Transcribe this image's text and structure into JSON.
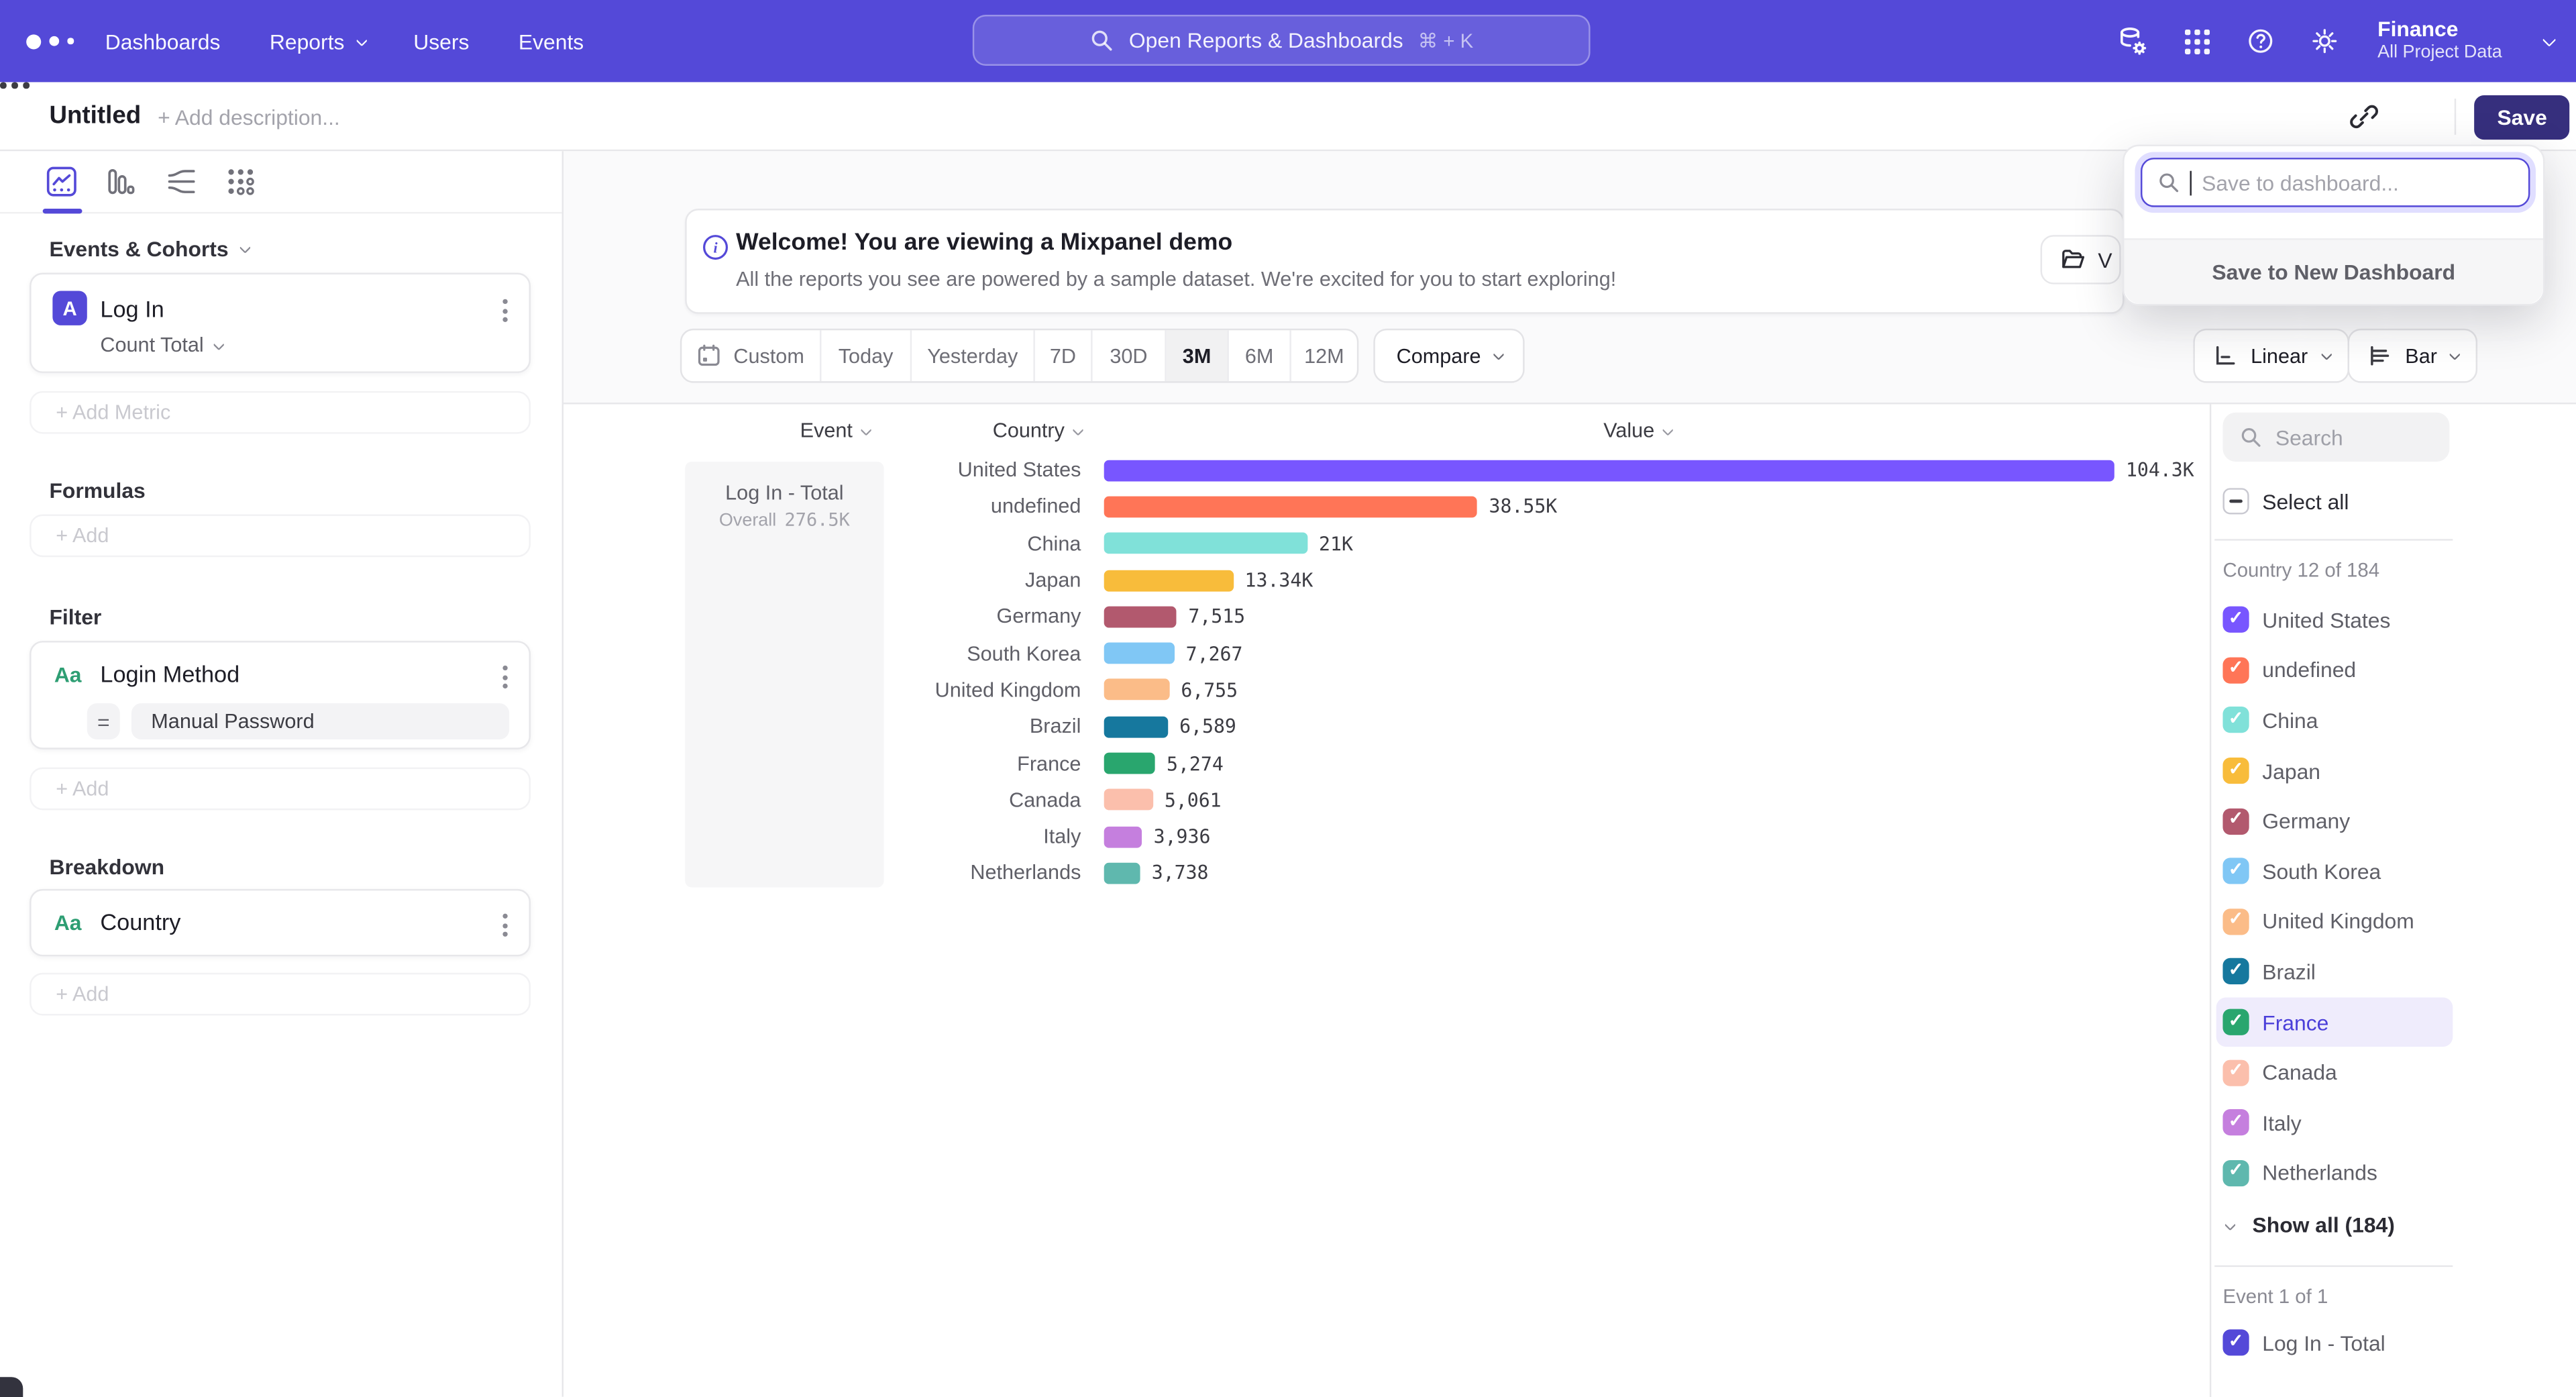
{
  "nav": {
    "menu": [
      "Dashboards",
      "Reports",
      "Users",
      "Events"
    ],
    "search_placeholder": "Open Reports & Dashboards",
    "search_shortcut": "⌘ + K",
    "project_name": "Finance",
    "project_scope": "All Project Data"
  },
  "header": {
    "title": "Untitled",
    "description_placeholder": "+ Add description...",
    "save_label": "Save"
  },
  "save_popup": {
    "input_placeholder": "Save to dashboard...",
    "new_dashboard_label": "Save to New Dashboard"
  },
  "banner": {
    "title": "Welcome! You are viewing a Mixpanel demo",
    "subtitle": "All the reports you see are powered by a sample dataset. We're excited for you to start exploring!",
    "button_label": "V"
  },
  "toolbar": {
    "ranges": [
      "Custom",
      "Today",
      "Yesterday",
      "7D",
      "30D",
      "3M",
      "6M",
      "12M"
    ],
    "selected_range": "3M",
    "compare_label": "Compare",
    "scale_type": "Linear",
    "chart_type": "Bar"
  },
  "sidebar": {
    "events_header": "Events & Cohorts",
    "event_badge": "A",
    "event_name": "Log In",
    "event_aggregation": "Count Total",
    "add_metric_label": "+ Add Metric",
    "formulas_header": "Formulas",
    "formulas_add_label": "+ Add",
    "filter_header": "Filter",
    "filter_property_icon": "Aa",
    "filter_property": "Login Method",
    "filter_operator": "=",
    "filter_value": "Manual Password",
    "filter_add_label": "+ Add",
    "breakdown_header": "Breakdown",
    "breakdown_property_icon": "Aa",
    "breakdown_property": "Country",
    "breakdown_add_label": "+ Add"
  },
  "chart_data": {
    "type": "bar",
    "orientation": "horizontal",
    "series_name": "Log In - Total",
    "overall_label": "Overall",
    "overall_value": "276.5K",
    "column_headers": {
      "event": "Event",
      "country": "Country",
      "value": "Value"
    },
    "categories": [
      "United States",
      "undefined",
      "China",
      "Japan",
      "Germany",
      "South Korea",
      "United Kingdom",
      "Brazil",
      "France",
      "Canada",
      "Italy",
      "Netherlands"
    ],
    "values": [
      104300,
      38550,
      21000,
      13340,
      7515,
      7267,
      6755,
      6589,
      5274,
      5061,
      3936,
      3738
    ],
    "value_labels": [
      "104.3K",
      "38.55K",
      "21K",
      "13.34K",
      "7,515",
      "7,267",
      "6,755",
      "6,589",
      "5,274",
      "5,061",
      "3,936",
      "3,738"
    ],
    "colors": [
      "#7856FF",
      "#FF7557",
      "#80E1D9",
      "#F8BC3B",
      "#B2596E",
      "#80C7F5",
      "#FBBC88",
      "#16789E",
      "#29A66E",
      "#FBBFAC",
      "#C57FDE",
      "#5FB8AE"
    ],
    "xlim": [
      0,
      104300
    ],
    "grid": false
  },
  "right_panel": {
    "search_placeholder": "Search",
    "select_all_label": "Select all",
    "group_label": "Country 12 of 184",
    "countries": [
      {
        "label": "United States",
        "color": "#7856FF",
        "checked": true
      },
      {
        "label": "undefined",
        "color": "#FF7557",
        "checked": true
      },
      {
        "label": "China",
        "color": "#80E1D9",
        "checked": true
      },
      {
        "label": "Japan",
        "color": "#F8BC3B",
        "checked": true
      },
      {
        "label": "Germany",
        "color": "#B2596E",
        "checked": true
      },
      {
        "label": "South Korea",
        "color": "#80C7F5",
        "checked": true
      },
      {
        "label": "United Kingdom",
        "color": "#FBBC88",
        "checked": true
      },
      {
        "label": "Brazil",
        "color": "#16789E",
        "checked": true
      },
      {
        "label": "France",
        "color": "#29A66E",
        "checked": true,
        "highlighted": true
      },
      {
        "label": "Canada",
        "color": "#FBBFAC",
        "checked": true
      },
      {
        "label": "Italy",
        "color": "#C57FDE",
        "checked": true
      },
      {
        "label": "Netherlands",
        "color": "#5FB8AE",
        "checked": true
      }
    ],
    "show_all_label": "Show all (184)",
    "event_group_label": "Event 1 of 1",
    "event_item_label": "Log In - Total",
    "event_item_color": "#5449D8"
  }
}
